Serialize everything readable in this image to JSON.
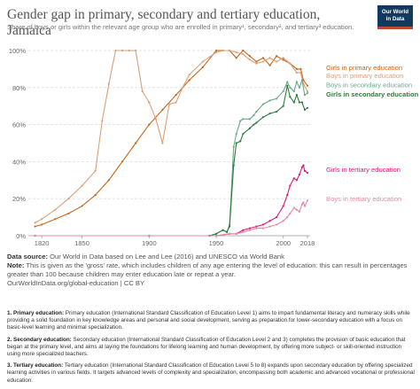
{
  "header": {
    "title": "Gender gap in primary, secondary and tertiary education, Jamaica",
    "subtitle": "Share of boys or girls within the relevant age group who are enrolled in primary¹, secondary², and tertiary³ education.",
    "logo_line1": "Our World",
    "logo_line2": "in Data"
  },
  "colors": {
    "girls_primary": "#c5661d",
    "boys_primary": "#daa07b",
    "boys_secondary": "#6aa98a",
    "girls_secondary": "#2e7b3a",
    "girls_tertiary": "#d61c7a",
    "boys_tertiary": "#e48aa3"
  },
  "chart_data": {
    "type": "line",
    "xlim": [
      1810,
      2020
    ],
    "ylim": [
      0,
      100
    ],
    "x_ticks": [
      "1820",
      "1850",
      "1900",
      "1950",
      "2000",
      "2018"
    ],
    "x_tick_values": [
      1820,
      1850,
      1900,
      1950,
      2000,
      2018
    ],
    "y_ticks": [
      "0%",
      "20%",
      "40%",
      "60%",
      "80%",
      "100%"
    ],
    "y_tick_values": [
      0,
      20,
      40,
      60,
      80,
      100
    ],
    "grid": "horizontal dashed",
    "series": [
      {
        "key": "girls_primary",
        "name": "Girls in primary education",
        "points": [
          [
            1815,
            5
          ],
          [
            1820,
            6
          ],
          [
            1830,
            9
          ],
          [
            1840,
            12
          ],
          [
            1850,
            16
          ],
          [
            1860,
            22
          ],
          [
            1870,
            30
          ],
          [
            1880,
            40
          ],
          [
            1890,
            50
          ],
          [
            1900,
            60
          ],
          [
            1910,
            68
          ],
          [
            1920,
            76
          ],
          [
            1930,
            84
          ],
          [
            1940,
            91
          ],
          [
            1950,
            100
          ],
          [
            1955,
            100
          ],
          [
            1960,
            100
          ],
          [
            1965,
            96
          ],
          [
            1970,
            100
          ],
          [
            1975,
            97
          ],
          [
            1980,
            94
          ],
          [
            1985,
            96
          ],
          [
            1990,
            92
          ],
          [
            1995,
            97
          ],
          [
            2000,
            95
          ],
          [
            2005,
            93
          ],
          [
            2010,
            90
          ],
          [
            2013,
            90
          ],
          [
            2015,
            84
          ],
          [
            2018,
            81
          ]
        ]
      },
      {
        "key": "boys_primary",
        "name": "Boys in primary education",
        "points": [
          [
            1815,
            7
          ],
          [
            1820,
            9
          ],
          [
            1830,
            14
          ],
          [
            1840,
            20
          ],
          [
            1850,
            27
          ],
          [
            1860,
            35
          ],
          [
            1865,
            62
          ],
          [
            1870,
            82
          ],
          [
            1875,
            100
          ],
          [
            1880,
            100
          ],
          [
            1885,
            100
          ],
          [
            1890,
            100
          ],
          [
            1895,
            78
          ],
          [
            1900,
            72
          ],
          [
            1905,
            63
          ],
          [
            1910,
            50
          ],
          [
            1915,
            71
          ],
          [
            1920,
            72
          ],
          [
            1925,
            80
          ],
          [
            1930,
            87
          ],
          [
            1940,
            94
          ],
          [
            1950,
            99
          ],
          [
            1955,
            100
          ],
          [
            1960,
            100
          ],
          [
            1965,
            99
          ],
          [
            1970,
            98
          ],
          [
            1975,
            95
          ],
          [
            1980,
            93
          ],
          [
            1985,
            94
          ],
          [
            1990,
            96
          ],
          [
            1995,
            94
          ],
          [
            2000,
            96
          ],
          [
            2005,
            93
          ],
          [
            2010,
            88
          ],
          [
            2013,
            88
          ],
          [
            2015,
            82
          ],
          [
            2018,
            78
          ]
        ]
      },
      {
        "key": "boys_secondary",
        "name": "Boys in secondary education",
        "points": [
          [
            1815,
            0
          ],
          [
            1900,
            0
          ],
          [
            1945,
            0
          ],
          [
            1950,
            1
          ],
          [
            1955,
            3
          ],
          [
            1958,
            2
          ],
          [
            1960,
            6
          ],
          [
            1963,
            48
          ],
          [
            1965,
            55
          ],
          [
            1968,
            62
          ],
          [
            1970,
            63
          ],
          [
            1975,
            63
          ],
          [
            1978,
            65
          ],
          [
            1980,
            67
          ],
          [
            1985,
            71
          ],
          [
            1990,
            73
          ],
          [
            1995,
            74
          ],
          [
            2000,
            78
          ],
          [
            2003,
            83
          ],
          [
            2005,
            80
          ],
          [
            2008,
            78
          ],
          [
            2010,
            83
          ],
          [
            2012,
            80
          ],
          [
            2014,
            84
          ],
          [
            2016,
            76
          ],
          [
            2018,
            77
          ]
        ]
      },
      {
        "key": "girls_secondary",
        "name": "Girls in secondary education",
        "points": [
          [
            1815,
            0
          ],
          [
            1900,
            0
          ],
          [
            1945,
            0
          ],
          [
            1950,
            1
          ],
          [
            1955,
            3
          ],
          [
            1958,
            2
          ],
          [
            1960,
            5
          ],
          [
            1963,
            38
          ],
          [
            1965,
            50
          ],
          [
            1968,
            51
          ],
          [
            1970,
            55
          ],
          [
            1975,
            58
          ],
          [
            1978,
            60
          ],
          [
            1980,
            61
          ],
          [
            1985,
            64
          ],
          [
            1990,
            66
          ],
          [
            1995,
            67
          ],
          [
            2000,
            70
          ],
          [
            2003,
            81
          ],
          [
            2005,
            75
          ],
          [
            2008,
            72
          ],
          [
            2010,
            76
          ],
          [
            2012,
            72
          ],
          [
            2014,
            72
          ],
          [
            2016,
            68
          ],
          [
            2018,
            69
          ]
        ]
      },
      {
        "key": "girls_tertiary",
        "name": "Girls in tertiary education",
        "points": [
          [
            1815,
            0
          ],
          [
            1900,
            0
          ],
          [
            1950,
            0
          ],
          [
            1960,
            1
          ],
          [
            1965,
            1
          ],
          [
            1970,
            3
          ],
          [
            1975,
            4
          ],
          [
            1980,
            5
          ],
          [
            1985,
            6
          ],
          [
            1990,
            8
          ],
          [
            1995,
            10
          ],
          [
            2000,
            16
          ],
          [
            2003,
            22
          ],
          [
            2005,
            27
          ],
          [
            2008,
            31
          ],
          [
            2010,
            30
          ],
          [
            2012,
            33
          ],
          [
            2014,
            37
          ],
          [
            2015,
            38
          ],
          [
            2016,
            35
          ],
          [
            2018,
            34
          ]
        ]
      },
      {
        "key": "boys_tertiary",
        "name": "Boys in tertiary education",
        "points": [
          [
            1815,
            0
          ],
          [
            1900,
            0
          ],
          [
            1950,
            0
          ],
          [
            1960,
            1
          ],
          [
            1965,
            1
          ],
          [
            1970,
            2
          ],
          [
            1975,
            3
          ],
          [
            1980,
            4
          ],
          [
            1985,
            4
          ],
          [
            1990,
            5
          ],
          [
            1995,
            6
          ],
          [
            2000,
            8
          ],
          [
            2003,
            10
          ],
          [
            2005,
            12
          ],
          [
            2008,
            15
          ],
          [
            2010,
            14
          ],
          [
            2012,
            13
          ],
          [
            2014,
            17
          ],
          [
            2015,
            18
          ],
          [
            2016,
            16
          ],
          [
            2018,
            19
          ]
        ]
      }
    ],
    "labels": [
      {
        "key": "girls_primary",
        "text": "Girls in primary education",
        "y": 91
      },
      {
        "key": "boys_primary",
        "text": "Boys in primary education",
        "y": 86.5
      },
      {
        "key": "boys_secondary",
        "text": "Boys in secondary education",
        "y": 81.5
      },
      {
        "key": "girls_secondary",
        "text": "Girls in secondary education",
        "y": 76.5
      },
      {
        "key": "girls_tertiary",
        "text": "Girls in tertiary education",
        "y": 36
      },
      {
        "key": "boys_tertiary",
        "text": "Boys in tertiary education",
        "y": 20
      }
    ]
  },
  "footer": {
    "source_label": "Data source:",
    "source_text": "Our World in Data based on Lee and Lee (2016) and UNESCO via World Bank",
    "note_label": "Note:",
    "note_text": "This is given as the 'gross' rate, which includes children of any age entering the level of education: this can result in percentages greater than 100 because children may enter education late or repeat a year.",
    "credit": "OurWorldInData.org/global-education | CC BY"
  },
  "notes": [
    {
      "label": "1. Primary education:",
      "text": "Primary education (International Standard Classification of Education Level 1) aims to impart fundamental literacy and numeracy skills while providing a solid foundation in key knowledge areas and personal and social development, serving as preparation for lower-secondary education with a focus on basic-level learning and minimal specialization."
    },
    {
      "label": "2. Secondary education:",
      "text": "Secondary education (International Standard Classification of Education Level 2 and 3) completes the provision of basic education that began at the primary level, and aims at laying the foundations for lifelong learning and human development, by offering more subject- or skill-oriented instruction using more specialized teachers."
    },
    {
      "label": "3. Tertiary education:",
      "text": "Tertiary education (International Standard Classification of Education Level 5 to 8) expands upon secondary education by offering specialized learning activities in various fields. It targets advanced levels of complexity and specialization, encompassing both academic and advanced vocational or professional education."
    }
  ]
}
